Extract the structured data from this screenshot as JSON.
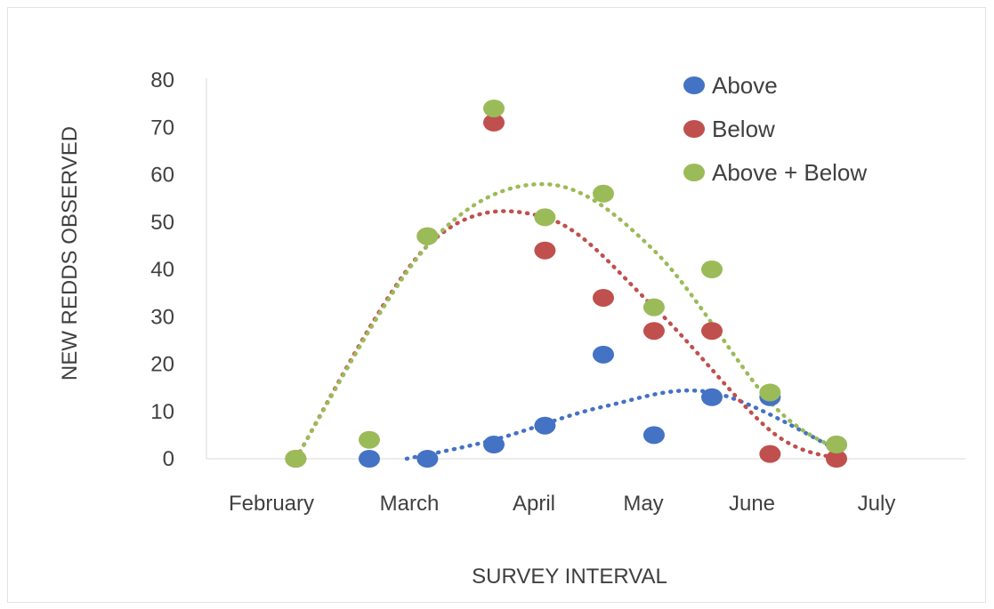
{
  "chart_data": {
    "type": "scatter",
    "xlabel": "SURVEY INTERVAL",
    "ylabel": "NEW REDDS OBSERVED",
    "xcategories": [
      "February",
      "March",
      "April",
      "May",
      "June",
      "July"
    ],
    "ylim": [
      0,
      80
    ],
    "yticks": [
      0,
      10,
      20,
      30,
      40,
      50,
      60,
      70,
      80
    ],
    "grid": false,
    "legend_position": "top-right",
    "trendline": "polynomial (dotted)",
    "series": [
      {
        "name": "Above",
        "color": "#4472c4",
        "points": [
          {
            "x": "Mar 1",
            "y": 0
          },
          {
            "x": "Mar 15",
            "y": 0
          },
          {
            "x": "Apr 1",
            "y": 3
          },
          {
            "x": "Apr 15",
            "y": 7
          },
          {
            "x": "May 1",
            "y": 22
          },
          {
            "x": "May 15",
            "y": 5
          },
          {
            "x": "Jun 1",
            "y": 13
          },
          {
            "x": "Jun 15",
            "y": 13
          },
          {
            "x": "Jul 1",
            "y": 3
          }
        ],
        "trend": [
          {
            "x": "Mar 10",
            "y": 0
          },
          {
            "x": "Apr 1",
            "y": 4
          },
          {
            "x": "May 1",
            "y": 11
          },
          {
            "x": "Jun 1",
            "y": 14
          },
          {
            "x": "Jul 1",
            "y": 2
          }
        ]
      },
      {
        "name": "Below",
        "color": "#c0504d",
        "points": [
          {
            "x": "Feb 15",
            "y": 0
          },
          {
            "x": "Mar 15",
            "y": 47
          },
          {
            "x": "Apr 1",
            "y": 71
          },
          {
            "x": "Apr 15",
            "y": 44
          },
          {
            "x": "May 1",
            "y": 34
          },
          {
            "x": "May 15",
            "y": 27
          },
          {
            "x": "Jun 1",
            "y": 27
          },
          {
            "x": "Jun 15",
            "y": 1
          },
          {
            "x": "Jul 1",
            "y": 0
          }
        ],
        "trend": [
          {
            "x": "Feb 15",
            "y": 0
          },
          {
            "x": "Mar 15",
            "y": 45
          },
          {
            "x": "Apr 15",
            "y": 51
          },
          {
            "x": "May 15",
            "y": 32
          },
          {
            "x": "Jun 15",
            "y": 6
          },
          {
            "x": "Jul 1",
            "y": 0
          }
        ]
      },
      {
        "name": "Above + Below",
        "color": "#9bbb59",
        "points": [
          {
            "x": "Feb 15",
            "y": 0
          },
          {
            "x": "Mar 1",
            "y": 4
          },
          {
            "x": "Mar 15",
            "y": 47
          },
          {
            "x": "Apr 1",
            "y": 74
          },
          {
            "x": "Apr 15",
            "y": 51
          },
          {
            "x": "May 1",
            "y": 56
          },
          {
            "x": "May 15",
            "y": 32
          },
          {
            "x": "Jun 1",
            "y": 40
          },
          {
            "x": "Jun 15",
            "y": 14
          },
          {
            "x": "Jul 1",
            "y": 3
          }
        ],
        "trend": [
          {
            "x": "Feb 15",
            "y": 0
          },
          {
            "x": "Mar 15",
            "y": 45
          },
          {
            "x": "Apr 15",
            "y": 58
          },
          {
            "x": "May 15",
            "y": 44
          },
          {
            "x": "Jun 15",
            "y": 12
          },
          {
            "x": "Jul 1",
            "y": 2
          }
        ]
      }
    ]
  }
}
